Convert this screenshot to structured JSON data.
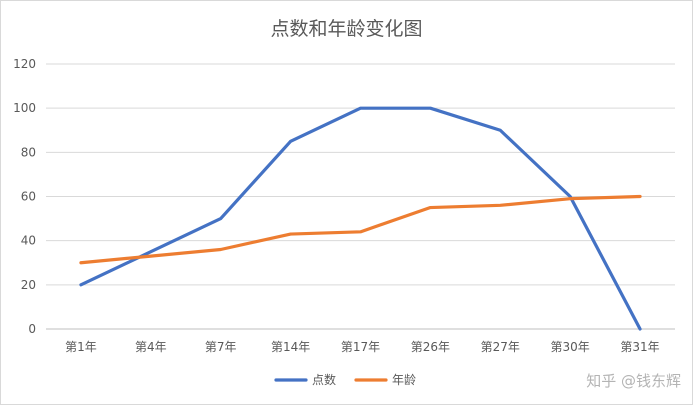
{
  "chart_data": {
    "type": "line",
    "title": "点数和年龄变化图",
    "categories": [
      "第1年",
      "第4年",
      "第7年",
      "第14年",
      "第17年",
      "第26年",
      "第27年",
      "第30年",
      "第31年"
    ],
    "series": [
      {
        "name": "点数",
        "color": "#4472c4",
        "values": [
          20,
          35,
          50,
          85,
          100,
          100,
          90,
          60,
          0
        ]
      },
      {
        "name": "年龄",
        "color": "#ed7d31",
        "values": [
          30,
          33,
          36,
          43,
          44,
          55,
          56,
          59,
          60
        ]
      }
    ],
    "ylim": [
      0,
      120
    ],
    "yticks": [
      0,
      20,
      40,
      60,
      80,
      100,
      120
    ],
    "grid": true,
    "legend_position": "bottom"
  },
  "watermark": "知乎 @钱东辉"
}
